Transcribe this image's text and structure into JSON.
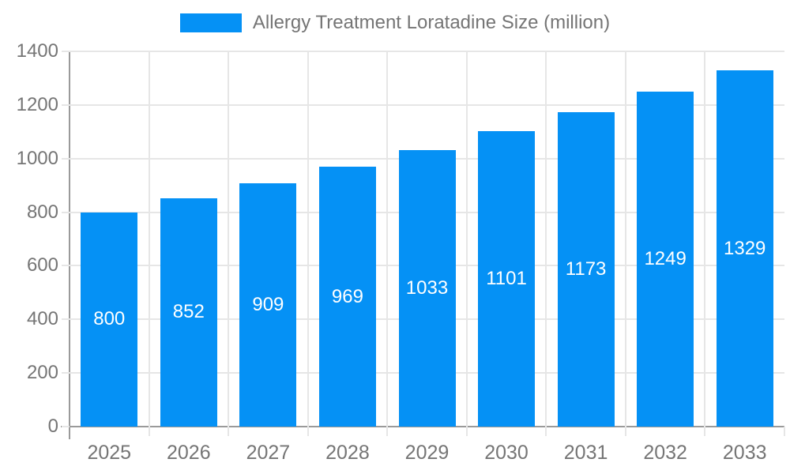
{
  "chart_data": {
    "type": "bar",
    "title": "Allergy Treatment Loratadine Size (million)",
    "categories": [
      "2025",
      "2026",
      "2027",
      "2028",
      "2029",
      "2030",
      "2031",
      "2032",
      "2033"
    ],
    "values": [
      800,
      852,
      909,
      969,
      1033,
      1101,
      1173,
      1249,
      1329
    ],
    "series": [
      {
        "name": "Allergy Treatment Loratadine Size (million)",
        "values": [
          800,
          852,
          909,
          969,
          1033,
          1101,
          1173,
          1249,
          1329
        ]
      }
    ],
    "xlabel": "",
    "ylabel": "",
    "ylim": [
      0,
      1400
    ],
    "ytick_step": 200,
    "ytick_labels": [
      "0",
      "200",
      "400",
      "600",
      "800",
      "1000",
      "1200",
      "1400"
    ],
    "grid": true,
    "legend_position": "top",
    "value_labels": "inside-center-white",
    "colors": {
      "bar": "#0591F5",
      "text": "#757575",
      "grid": "#e6e6e6",
      "axis": "#9a9a9a",
      "value_label": "#ffffff",
      "background": "#ffffff"
    }
  }
}
